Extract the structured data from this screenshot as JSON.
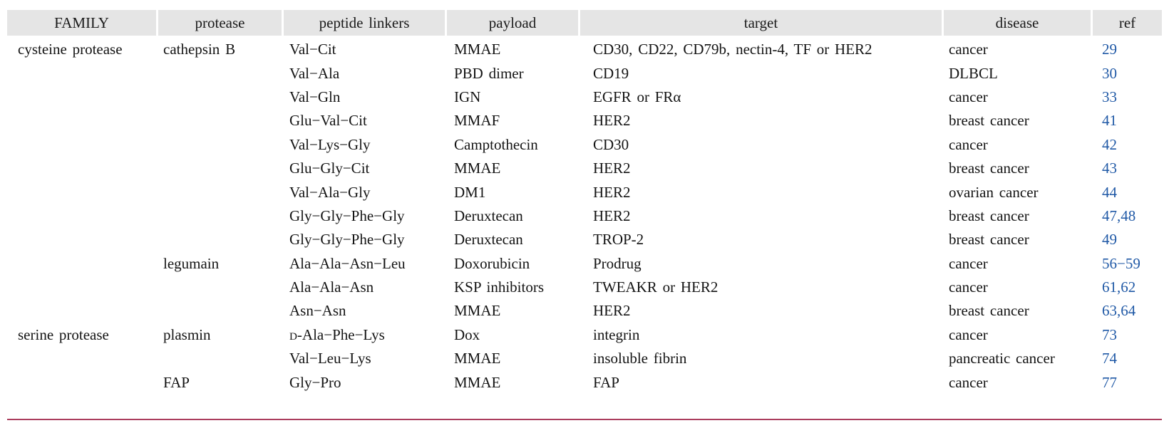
{
  "colors": {
    "header_bg": "#e5e5e5",
    "ref_link_blue": "#2059a6",
    "bottom_rule_red": "#ab3d5d",
    "text": "#141414"
  },
  "table": {
    "columns": [
      {
        "key": "family",
        "label": "FAMILY"
      },
      {
        "key": "protease",
        "label": "protease"
      },
      {
        "key": "linkers",
        "label": "peptide linkers"
      },
      {
        "key": "payload",
        "label": "payload"
      },
      {
        "key": "target",
        "label": "target"
      },
      {
        "key": "disease",
        "label": "disease"
      },
      {
        "key": "ref",
        "label": "ref"
      }
    ],
    "rows": [
      {
        "family": "cysteine protease",
        "protease": "cathepsin B",
        "linkers": "Val−Cit",
        "payload": "MMAE",
        "target": "CD30, CD22, CD79b, nectin-4, TF or HER2",
        "disease": "cancer",
        "ref": "29"
      },
      {
        "family": "",
        "protease": "",
        "linkers": "Val−Ala",
        "payload": "PBD dimer",
        "target": "CD19",
        "disease": "DLBCL",
        "ref": "30"
      },
      {
        "family": "",
        "protease": "",
        "linkers": "Val−Gln",
        "payload": "IGN",
        "target": "EGFR or FRα",
        "disease": "cancer",
        "ref": "33"
      },
      {
        "family": "",
        "protease": "",
        "linkers": "Glu−Val−Cit",
        "payload": "MMAF",
        "target": "HER2",
        "disease": "breast cancer",
        "ref": "41"
      },
      {
        "family": "",
        "protease": "",
        "linkers": "Val−Lys−Gly",
        "payload": "Camptothecin",
        "target": "CD30",
        "disease": "cancer",
        "ref": "42"
      },
      {
        "family": "",
        "protease": "",
        "linkers": "Glu−Gly−Cit",
        "payload": "MMAE",
        "target": "HER2",
        "disease": "breast cancer",
        "ref": "43"
      },
      {
        "family": "",
        "protease": "",
        "linkers": "Val−Ala−Gly",
        "payload": "DM1",
        "target": "HER2",
        "disease": "ovarian cancer",
        "ref": "44"
      },
      {
        "family": "",
        "protease": "",
        "linkers": "Gly−Gly−Phe−Gly",
        "payload": "Deruxtecan",
        "target": "HER2",
        "disease": "breast cancer",
        "ref": "47,48"
      },
      {
        "family": "",
        "protease": "",
        "linkers": "Gly−Gly−Phe−Gly",
        "payload": "Deruxtecan",
        "target": "TROP-2",
        "disease": "breast cancer",
        "ref": "49"
      },
      {
        "family": "",
        "protease": "legumain",
        "linkers": "Ala−Ala−Asn−Leu",
        "payload": "Doxorubicin",
        "target": "Prodrug",
        "disease": "cancer",
        "ref": "56−59"
      },
      {
        "family": "",
        "protease": "",
        "linkers": "Ala−Ala−Asn",
        "payload": "KSP inhibitors",
        "target": "TWEAKR or HER2",
        "disease": "cancer",
        "ref": "61,62"
      },
      {
        "family": "",
        "protease": "",
        "linkers": "Asn−Asn",
        "payload": "MMAE",
        "target": "HER2",
        "disease": "breast cancer",
        "ref": "63,64"
      },
      {
        "family": "serine protease",
        "protease": "plasmin",
        "linkers": "D-Ala−Phe−Lys",
        "payload": "Dox",
        "target": "integrin",
        "disease": "cancer",
        "ref": "73",
        "linkers_small_cap_d": true
      },
      {
        "family": "",
        "protease": "",
        "linkers": "Val−Leu−Lys",
        "payload": "MMAE",
        "target": "insoluble fibrin",
        "disease": "pancreatic cancer",
        "ref": "74"
      },
      {
        "family": "",
        "protease": "FAP",
        "linkers": "Gly−Pro",
        "payload": "MMAE",
        "target": "FAP",
        "disease": "cancer",
        "ref": "77"
      }
    ]
  }
}
